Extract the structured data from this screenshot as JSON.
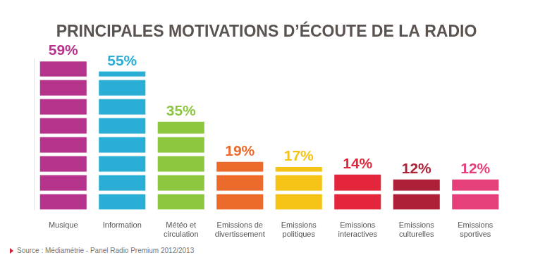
{
  "chart_data": {
    "type": "bar",
    "title": "PRINCIPALES MOTIVATIONS D’ÉCOUTE DE LA RADIO",
    "categories": [
      "Musique",
      "Information",
      "Météo et circulation",
      "Emissions de divertissement",
      "Emissions politiques",
      "Emissions interactives",
      "Emissions culturelles",
      "Emissions sportives"
    ],
    "values": [
      59,
      55,
      35,
      19,
      17,
      14,
      12,
      12
    ],
    "value_labels": [
      "59%",
      "55%",
      "35%",
      "19%",
      "17%",
      "14%",
      "12%",
      "12%"
    ],
    "colors": [
      "#b5338a",
      "#2aaed6",
      "#8dc63f",
      "#ec6a2c",
      "#f5c316",
      "#e3263c",
      "#ad2038",
      "#e6407c"
    ],
    "ylim": [
      0,
      60
    ],
    "grid": false,
    "data_labels": true,
    "tick_labels": "x",
    "source": "Source : Médiamétrie - Panel Radio Premium 2012/2013"
  }
}
